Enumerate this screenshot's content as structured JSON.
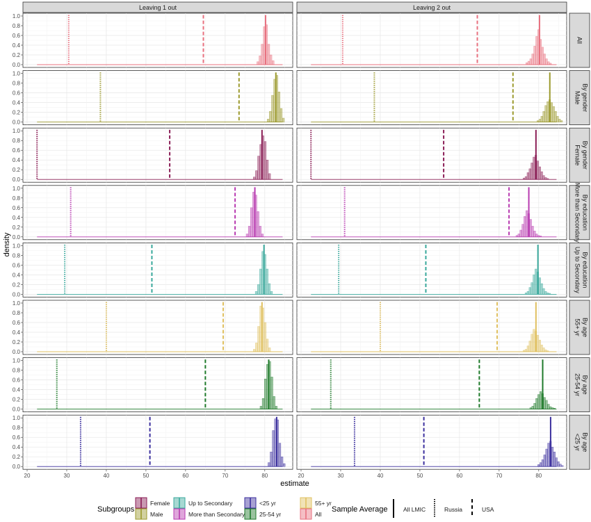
{
  "chart_data": {
    "type": "histogram",
    "xlabel": "estimate",
    "ylabel": "density",
    "xlim": [
      20,
      86
    ],
    "ylim": [
      0,
      1.0
    ],
    "x_ticks": [
      20,
      30,
      40,
      50,
      60,
      70,
      80
    ],
    "y_ticks": [
      "0.0",
      "0.2",
      "0.4",
      "0.6",
      "0.8",
      "1.0"
    ],
    "grid": true,
    "columns": [
      "Leaving 1 out",
      "Leaving 2 out"
    ],
    "rows": [
      {
        "group": "",
        "label": "All",
        "subgroup": "All",
        "color": "#e8707f",
        "russia": 30.5,
        "usa": 64.5,
        "lmic": 80.2,
        "hist1": {
          "center": 80.2,
          "heights": [
            0.06,
            0.18,
            0.42,
            0.78,
            0.82,
            0.42,
            0.2,
            0.08
          ]
        },
        "hist2": {
          "center": 80.0,
          "heights": [
            0.04,
            0.07,
            0.12,
            0.22,
            0.38,
            0.58,
            0.72,
            0.52,
            0.36,
            0.22,
            0.12,
            0.06,
            0.03
          ]
        }
      },
      {
        "group": "By gender",
        "label": "Male",
        "subgroup": "Male",
        "color": "#9c9a2e",
        "russia": 38.5,
        "usa": 73.5,
        "lmic": 82.8,
        "hist1": {
          "center": 82.8,
          "heights": [
            0.06,
            0.22,
            0.55,
            0.88,
            0.96,
            0.62,
            0.28,
            0.08
          ]
        },
        "hist2": {
          "center": 82.8,
          "heights": [
            0.03,
            0.06,
            0.12,
            0.22,
            0.34,
            0.42,
            0.46,
            0.4,
            0.32,
            0.22,
            0.12,
            0.06,
            0.03
          ]
        }
      },
      {
        "group": "By gender",
        "label": "Female",
        "subgroup": "Female",
        "color": "#8a1d55",
        "russia": 22.5,
        "usa": 56.0,
        "lmic": 79.3,
        "hist1": {
          "center": 79.3,
          "heights": [
            0.05,
            0.18,
            0.48,
            0.72,
            0.9,
            0.78,
            0.4,
            0.12
          ]
        },
        "hist2": {
          "center": 79.3,
          "heights": [
            0.03,
            0.06,
            0.14,
            0.22,
            0.34,
            0.46,
            0.5,
            0.38,
            0.26,
            0.16,
            0.08,
            0.04,
            0.02
          ]
        }
      },
      {
        "group": "By education",
        "label": "More than Secondary",
        "subgroup": "More than Secondary",
        "color": "#b83ab0",
        "russia": 31.0,
        "usa": 72.5,
        "lmic": 77.5,
        "hist1": {
          "center": 77.5,
          "heights": [
            0.06,
            0.22,
            0.6,
            0.92,
            0.86,
            0.52,
            0.22,
            0.06
          ]
        },
        "hist2": {
          "center": 77.5,
          "heights": [
            0.03,
            0.06,
            0.14,
            0.26,
            0.42,
            0.54,
            0.48,
            0.36,
            0.22,
            0.12,
            0.06,
            0.03,
            0.02
          ]
        }
      },
      {
        "group": "By education",
        "label": "Up to Secondary",
        "subgroup": "Up to Secondary",
        "color": "#3aa99c",
        "russia": 29.5,
        "usa": 51.5,
        "lmic": 79.8,
        "hist1": {
          "center": 79.8,
          "heights": [
            0.06,
            0.2,
            0.52,
            0.88,
            0.82,
            0.52,
            0.22,
            0.06
          ]
        },
        "hist2": {
          "center": 79.8,
          "heights": [
            0.03,
            0.06,
            0.14,
            0.24,
            0.4,
            0.52,
            0.46,
            0.34,
            0.22,
            0.12,
            0.06,
            0.03,
            0.02
          ]
        }
      },
      {
        "group": "By age",
        "label": "55+ yr",
        "subgroup": "55+ yr",
        "color": "#e0c060",
        "russia": 40.0,
        "usa": 69.5,
        "lmic": 79.3,
        "hist1": {
          "center": 79.3,
          "heights": [
            0.05,
            0.18,
            0.52,
            0.94,
            0.9,
            0.6,
            0.26,
            0.08
          ]
        },
        "hist2": {
          "center": 79.3,
          "heights": [
            0.03,
            0.05,
            0.12,
            0.22,
            0.36,
            0.46,
            0.42,
            0.34,
            0.24,
            0.14,
            0.08,
            0.04,
            0.02
          ]
        }
      },
      {
        "group": "By age",
        "label": "25-54 yr",
        "subgroup": "25-54 yr",
        "color": "#1e7a2a",
        "russia": 27.5,
        "usa": 65.0,
        "lmic": 81.0,
        "hist1": {
          "center": 81.0,
          "heights": [
            0.06,
            0.22,
            0.62,
            0.92,
            0.98,
            0.66,
            0.26,
            0.06
          ]
        },
        "hist2": {
          "center": 81.0,
          "heights": [
            0.03,
            0.06,
            0.12,
            0.22,
            0.3,
            0.36,
            0.32,
            0.24,
            0.18,
            0.1,
            0.05,
            0.03,
            0.02
          ]
        }
      },
      {
        "group": "By age",
        "label": "<25 yr",
        "subgroup": "<25 yr",
        "color": "#3b2f9e",
        "russia": 33.5,
        "usa": 51.0,
        "lmic": 83.0,
        "hist1": {
          "center": 83.0,
          "heights": [
            0.08,
            0.3,
            0.74,
            0.98,
            0.96,
            0.48,
            0.2,
            0.06
          ]
        },
        "hist2": {
          "center": 83.0,
          "heights": [
            0.04,
            0.08,
            0.14,
            0.24,
            0.36,
            0.48,
            0.52,
            0.4,
            0.3,
            0.18,
            0.1,
            0.05,
            0.02
          ]
        }
      }
    ]
  },
  "legend": {
    "subgroups_title": "Subgroups",
    "subgroups": [
      {
        "label": "Female",
        "color": "#8a1d55"
      },
      {
        "label": "Male",
        "color": "#9c9a2e"
      },
      {
        "label": "Up to Secondary",
        "color": "#3aa99c"
      },
      {
        "label": "More than Secondary",
        "color": "#b83ab0"
      },
      {
        "label": "<25 yr",
        "color": "#3b2f9e"
      },
      {
        "label": "25-54 yr",
        "color": "#1e7a2a"
      },
      {
        "label": "55+ yr",
        "color": "#e0c060"
      },
      {
        "label": "All",
        "color": "#e8707f"
      }
    ],
    "average_title": "Sample Average",
    "averages": [
      {
        "label": "All LMIC",
        "style": "solid"
      },
      {
        "label": "Russia",
        "style": "dotted"
      },
      {
        "label": "USA",
        "style": "dashed"
      }
    ]
  }
}
